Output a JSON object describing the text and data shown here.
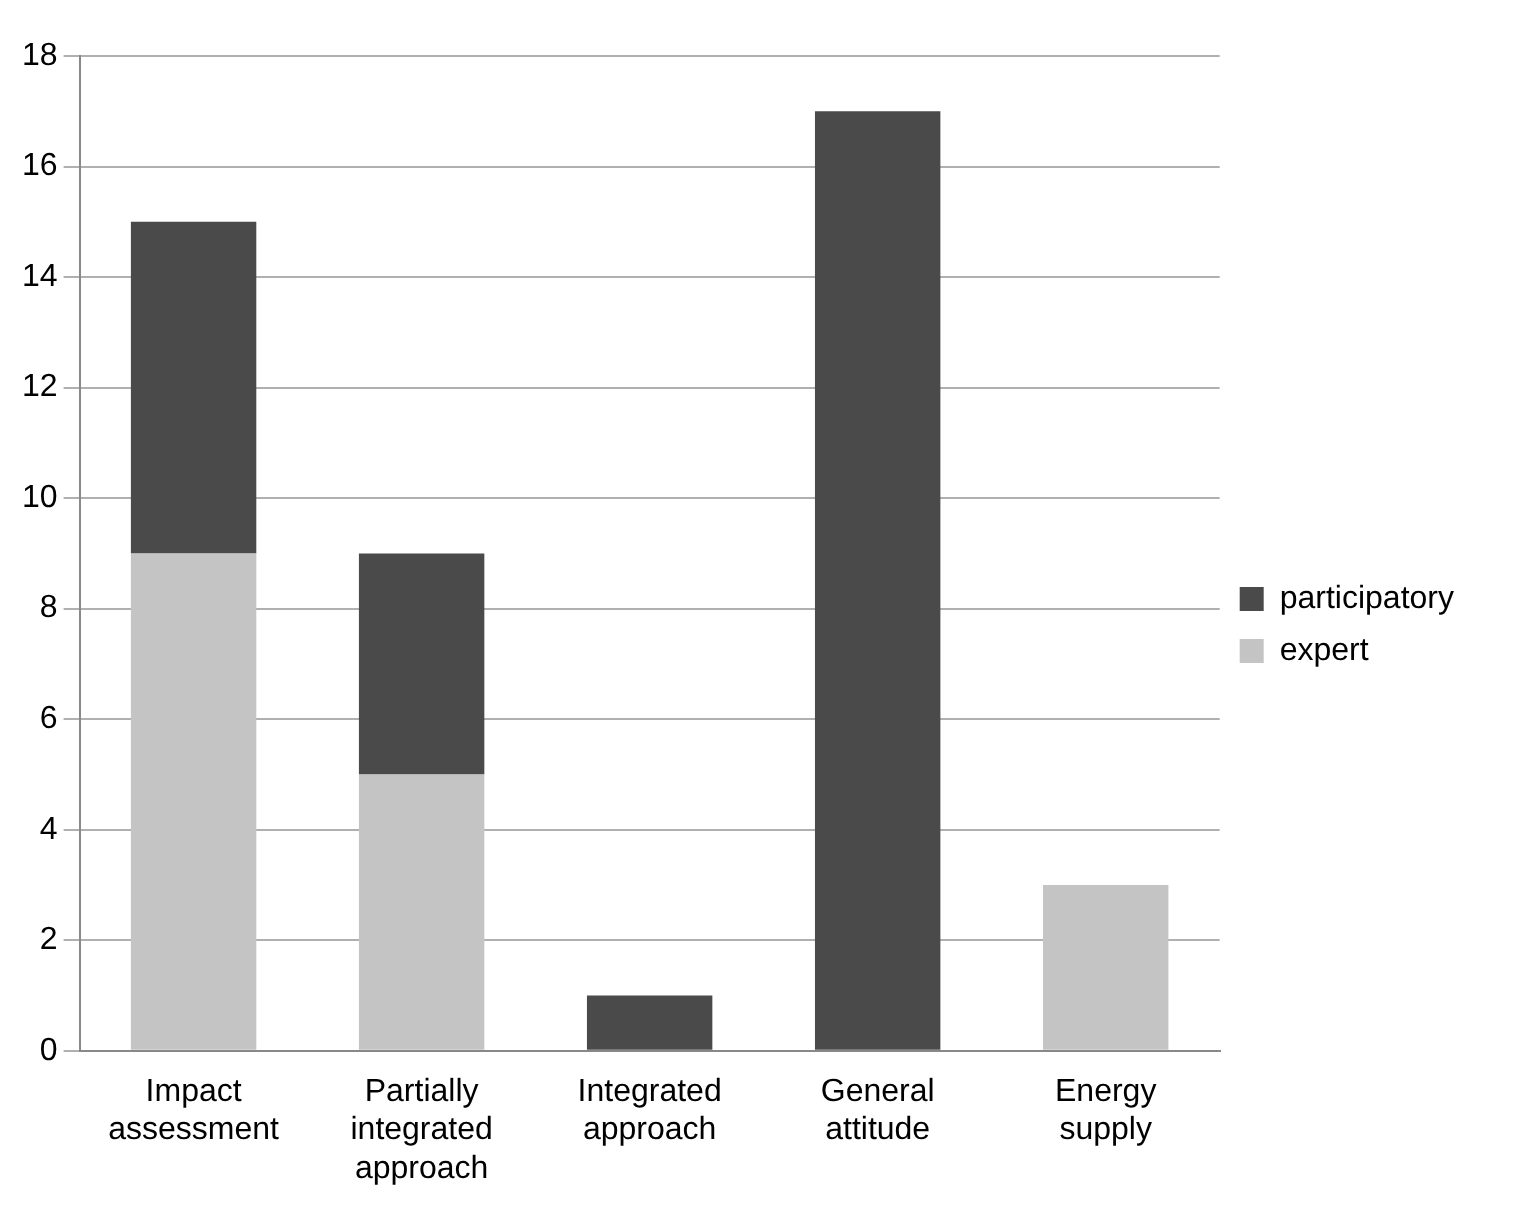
{
  "chart_data": {
    "type": "bar",
    "stacked": true,
    "categories": [
      "Impact assessment",
      "Partially integrated approach",
      "Integrated approach",
      "General attitude",
      "Energy supply"
    ],
    "series": [
      {
        "name": "expert",
        "color": "#c4c4c4",
        "values": [
          9,
          5,
          0,
          0,
          3
        ]
      },
      {
        "name": "participatory",
        "color": "#4a4a4a",
        "values": [
          6,
          4,
          1,
          17,
          0
        ]
      }
    ],
    "ylim": [
      0,
      18
    ],
    "yticks": [
      0,
      2,
      4,
      6,
      8,
      10,
      12,
      14,
      16,
      18
    ],
    "grid": "y",
    "legend": "right"
  }
}
